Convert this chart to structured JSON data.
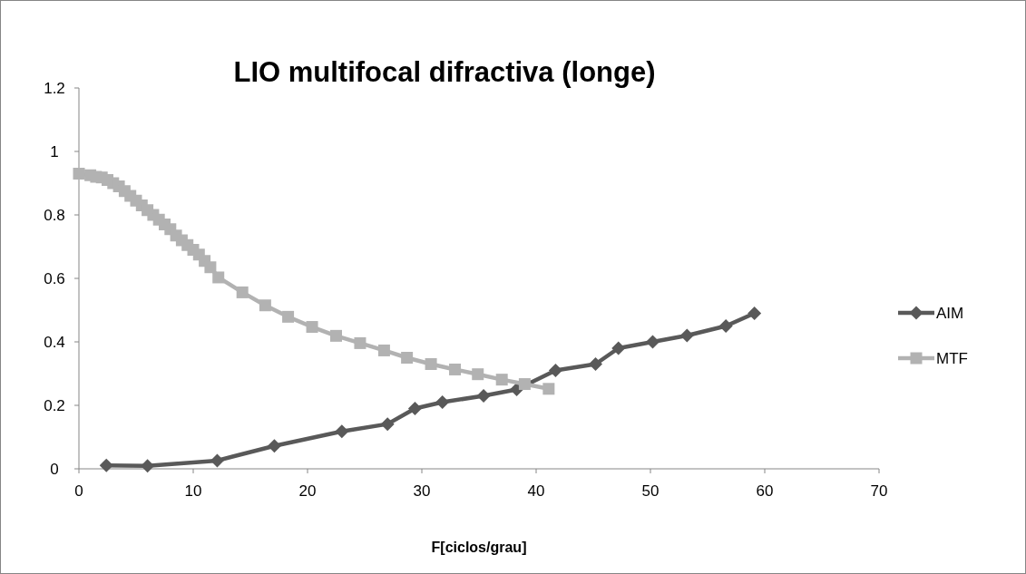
{
  "chart_data": {
    "type": "line",
    "title": "LIO multifocal difractiva (longe)",
    "xlabel": "F[ciclos/grau]",
    "xlim": [
      0,
      70
    ],
    "xticks": [
      0,
      10,
      20,
      30,
      40,
      50,
      60,
      70
    ],
    "ylim": [
      0,
      1.2
    ],
    "yticks": [
      0,
      0.2,
      0.4,
      0.6,
      0.8,
      1,
      1.2
    ],
    "grid": false,
    "legend": "right",
    "series": [
      {
        "name": "AIM",
        "color": "#595959",
        "marker": "diamond",
        "x": [
          2.4,
          6.0,
          12.1,
          17.1,
          23.0,
          27.0,
          29.4,
          31.8,
          35.4,
          38.3,
          41.7,
          45.2,
          47.2,
          50.2,
          53.2,
          56.6,
          59.1
        ],
        "values": [
          0.011,
          0.009,
          0.026,
          0.072,
          0.118,
          0.141,
          0.19,
          0.21,
          0.23,
          0.25,
          0.31,
          0.33,
          0.38,
          0.4,
          0.42,
          0.45,
          0.49
        ]
      },
      {
        "name": "MTF",
        "color": "#b2b2b2",
        "marker": "square",
        "x": [
          0,
          1,
          1.5,
          2,
          2.5,
          3,
          3.5,
          4,
          4.5,
          5,
          5.5,
          6,
          6.5,
          7,
          7.5,
          8,
          8.5,
          9,
          9.5,
          10,
          10.5,
          11,
          11.5,
          12.2,
          14.3,
          16.3,
          18.3,
          20.4,
          22.5,
          24.6,
          26.7,
          28.7,
          30.8,
          32.9,
          34.9,
          37.0,
          39.0,
          41.1
        ],
        "values": [
          0.93,
          0.925,
          0.92,
          0.918,
          0.91,
          0.9,
          0.89,
          0.875,
          0.86,
          0.845,
          0.83,
          0.815,
          0.8,
          0.785,
          0.77,
          0.755,
          0.735,
          0.72,
          0.705,
          0.69,
          0.675,
          0.655,
          0.635,
          0.603,
          0.556,
          0.515,
          0.479,
          0.447,
          0.419,
          0.396,
          0.373,
          0.35,
          0.33,
          0.313,
          0.298,
          0.281,
          0.267,
          0.252
        ]
      }
    ]
  }
}
